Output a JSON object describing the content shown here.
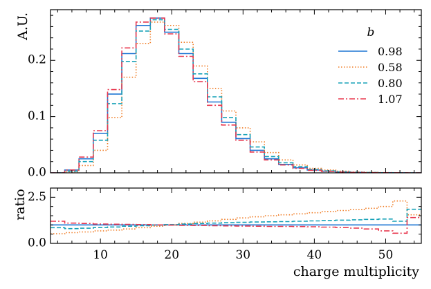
{
  "chart_data": [
    {
      "type": "line",
      "step": true,
      "title": "",
      "xlabel": "",
      "ylabel": "A.U.",
      "xlim": [
        3,
        55
      ],
      "ylim": [
        0,
        0.29
      ],
      "yticks": [
        0.0,
        0.1,
        0.2
      ],
      "ytick_labels": [
        "0.0",
        "0.1",
        "0.2"
      ],
      "bin_edges": [
        3,
        5,
        7,
        9,
        11,
        13,
        15,
        17,
        19,
        21,
        23,
        25,
        27,
        29,
        31,
        33,
        35,
        37,
        39,
        41,
        43,
        45,
        47,
        49,
        51,
        53,
        55
      ],
      "legend": {
        "title": "b",
        "position": "top-right"
      },
      "series": [
        {
          "name": "0.98",
          "color": "#1f77d4",
          "dash": "solid",
          "values": [
            0.0,
            0.005,
            0.025,
            0.07,
            0.14,
            0.212,
            0.262,
            0.275,
            0.25,
            0.212,
            0.168,
            0.126,
            0.09,
            0.061,
            0.04,
            0.025,
            0.015,
            0.009,
            0.005,
            0.003,
            0.0015,
            0.0008,
            0.0004,
            0.0002,
            0.0001,
            0.0
          ]
        },
        {
          "name": "0.58",
          "color": "#f07c24",
          "dash": "dotted",
          "values": [
            0.0,
            0.002,
            0.013,
            0.04,
            0.098,
            0.17,
            0.23,
            0.268,
            0.262,
            0.232,
            0.19,
            0.15,
            0.11,
            0.08,
            0.055,
            0.036,
            0.023,
            0.014,
            0.008,
            0.005,
            0.003,
            0.0015,
            0.0008,
            0.0004,
            0.0002,
            0.0001
          ]
        },
        {
          "name": "0.80",
          "color": "#17a2b8",
          "dash": "dashed",
          "values": [
            0.0,
            0.003,
            0.02,
            0.058,
            0.123,
            0.198,
            0.252,
            0.272,
            0.255,
            0.22,
            0.176,
            0.135,
            0.098,
            0.068,
            0.046,
            0.029,
            0.018,
            0.011,
            0.006,
            0.0035,
            0.002,
            0.001,
            0.0005,
            0.0002,
            0.0001,
            0.0
          ]
        },
        {
          "name": "1.07",
          "color": "#e8384f",
          "dash": "dashdot",
          "values": [
            0.0,
            0.005,
            0.028,
            0.075,
            0.148,
            0.222,
            0.268,
            0.275,
            0.247,
            0.207,
            0.162,
            0.12,
            0.085,
            0.058,
            0.037,
            0.023,
            0.014,
            0.008,
            0.0045,
            0.0025,
            0.0013,
            0.0007,
            0.0003,
            0.0002,
            0.0001,
            0.0
          ]
        }
      ]
    },
    {
      "type": "line",
      "step": true,
      "title": "",
      "xlabel": "charge multiplicity",
      "ylabel": "ratio",
      "xlim": [
        3,
        55
      ],
      "ylim": [
        0,
        3
      ],
      "xticks": [
        10,
        20,
        30,
        40,
        50
      ],
      "xtick_labels": [
        "10",
        "20",
        "30",
        "40",
        "50"
      ],
      "yticks": [
        0.0,
        2.5
      ],
      "ytick_labels": [
        "0.0",
        "2.5"
      ],
      "bin_edges": [
        3,
        5,
        7,
        9,
        11,
        13,
        15,
        17,
        19,
        21,
        23,
        25,
        27,
        29,
        31,
        33,
        35,
        37,
        39,
        41,
        43,
        45,
        47,
        49,
        51,
        53,
        55
      ],
      "series": [
        {
          "name": "0.98",
          "color": "#1f77d4",
          "dash": "solid",
          "values": [
            1.0,
            1.0,
            1.0,
            1.0,
            1.0,
            1.0,
            1.0,
            1.0,
            1.0,
            1.0,
            1.0,
            1.0,
            1.0,
            1.0,
            1.0,
            1.0,
            1.0,
            1.0,
            1.0,
            1.0,
            1.0,
            1.0,
            1.0,
            1.0,
            1.0,
            1.0
          ]
        },
        {
          "name": "0.58",
          "color": "#f07c24",
          "dash": "dotted",
          "values": [
            0.52,
            0.58,
            0.62,
            0.68,
            0.72,
            0.78,
            0.85,
            0.93,
            1.0,
            1.08,
            1.15,
            1.22,
            1.3,
            1.38,
            1.44,
            1.5,
            1.55,
            1.6,
            1.66,
            1.72,
            1.78,
            1.83,
            1.9,
            2.0,
            2.3,
            1.55
          ]
        },
        {
          "name": "0.80",
          "color": "#17a2b8",
          "dash": "dashed",
          "values": [
            0.85,
            0.8,
            0.82,
            0.86,
            0.89,
            0.93,
            0.96,
            0.99,
            1.02,
            1.05,
            1.08,
            1.1,
            1.12,
            1.14,
            1.16,
            1.17,
            1.18,
            1.2,
            1.22,
            1.24,
            1.26,
            1.28,
            1.3,
            1.32,
            1.2,
            1.85
          ]
        },
        {
          "name": "1.07",
          "color": "#e8384f",
          "dash": "dashdot",
          "values": [
            1.2,
            1.1,
            1.08,
            1.05,
            1.04,
            1.03,
            1.02,
            1.0,
            0.99,
            0.98,
            0.97,
            0.96,
            0.95,
            0.94,
            0.93,
            0.92,
            0.92,
            0.91,
            0.9,
            0.88,
            0.86,
            0.83,
            0.78,
            0.68,
            0.55,
            1.4
          ]
        }
      ]
    }
  ]
}
